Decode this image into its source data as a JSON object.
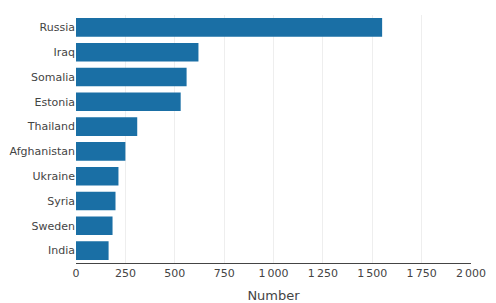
{
  "chart_data": {
    "type": "bar",
    "orientation": "horizontal",
    "categories": [
      "India",
      "Sweden",
      "Syria",
      "Ukraine",
      "Afghanistan",
      "Thailand",
      "Estonia",
      "Somalia",
      "Iraq",
      "Russia"
    ],
    "values": [
      165,
      185,
      200,
      215,
      250,
      310,
      530,
      560,
      620,
      1550
    ],
    "color": "#1a6fa5",
    "xlabel": "Number",
    "xlim": [
      0,
      2000
    ],
    "xticks": [
      0,
      250,
      500,
      750,
      {
        "value": 1000,
        "label": "1 000"
      },
      {
        "value": 1250,
        "label": "1 250"
      },
      {
        "value": 1500,
        "label": "1 500"
      },
      {
        "value": 1750,
        "label": "1 750"
      },
      {
        "value": 2000,
        "label": "2 000"
      }
    ],
    "grid": true
  }
}
